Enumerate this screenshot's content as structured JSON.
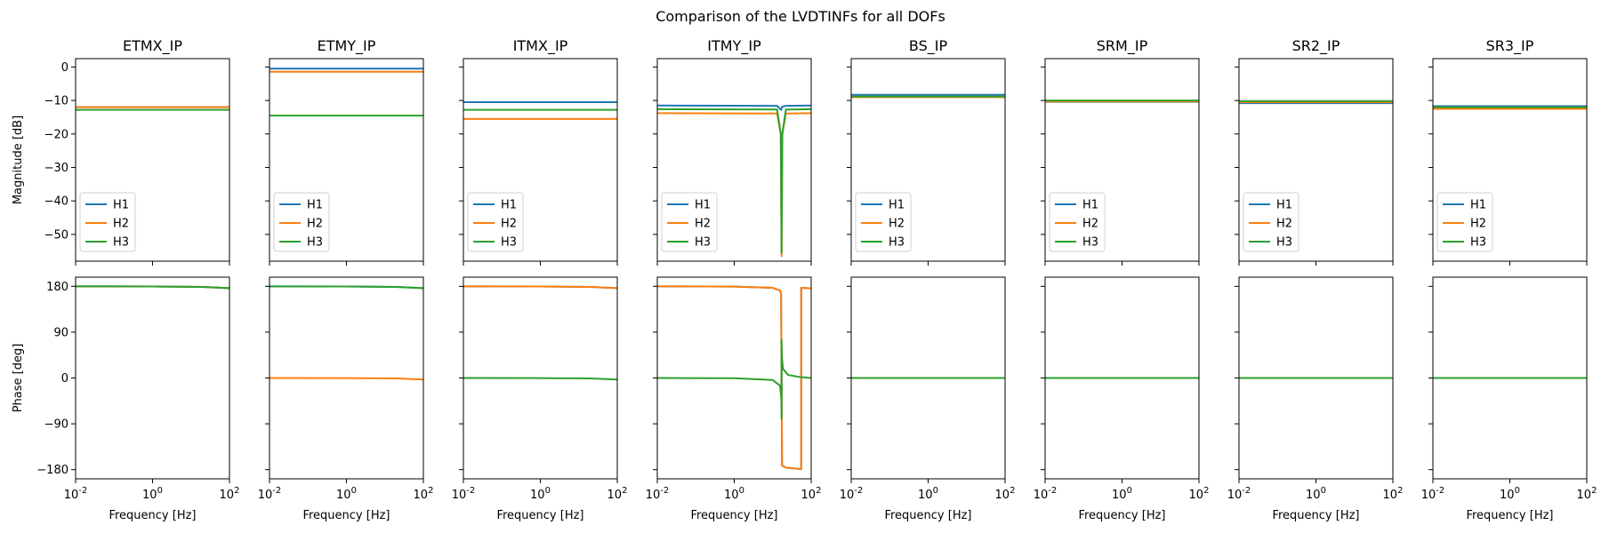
{
  "figure": {
    "title": "Comparison of the LVDTINFs for all DOFs"
  },
  "colors": {
    "H1": "#1f77b4",
    "H2": "#ff7f0e",
    "H3": "#2ca02c"
  },
  "chart_data": {
    "type": "line",
    "x_scale": "log",
    "xlabel": "Frequency [Hz]",
    "xlim": [
      0.01,
      100
    ],
    "x_ticks": [
      0.01,
      1,
      100
    ],
    "x_tick_labels": [
      "10^-2",
      "10^0",
      "10^2"
    ],
    "magnitude": {
      "ylabel": "Magnitude [dB]",
      "ylim": [
        -58,
        2.5
      ],
      "y_ticks": [
        0,
        -10,
        -20,
        -30,
        -40,
        -50
      ],
      "y_tick_labels": [
        "0",
        "−10",
        "−20",
        "−30",
        "−40",
        "−50"
      ]
    },
    "phase": {
      "ylabel": "Phase [deg]",
      "ylim": [
        -198,
        198
      ],
      "y_ticks": [
        180,
        90,
        0,
        -90,
        -180
      ],
      "y_tick_labels": [
        "180",
        "90",
        "0",
        "−90",
        "−180"
      ]
    },
    "legend": [
      "H1",
      "H2",
      "H3"
    ],
    "legend_placement": "lower-left",
    "grid": false,
    "panels": [
      {
        "title": "ETMX_IP",
        "magnitude": [
          {
            "name": "H1",
            "points": [
              [
                0.01,
                -12.0
              ],
              [
                100,
                -12.0
              ]
            ]
          },
          {
            "name": "H2",
            "points": [
              [
                0.01,
                -12.0
              ],
              [
                100,
                -12.0
              ]
            ]
          },
          {
            "name": "H3",
            "points": [
              [
                0.01,
                -12.8
              ],
              [
                100,
                -12.8
              ]
            ]
          }
        ],
        "phase": [
          {
            "name": "H1",
            "points": [
              [
                0.01,
                180
              ],
              [
                1,
                179.7
              ],
              [
                20,
                178.8
              ],
              [
                100,
                176.5
              ]
            ]
          },
          {
            "name": "H2",
            "points": [
              [
                0.01,
                180
              ],
              [
                1,
                179.7
              ],
              [
                20,
                178.8
              ],
              [
                100,
                176.5
              ]
            ]
          },
          {
            "name": "H3",
            "points": [
              [
                0.01,
                180
              ],
              [
                1,
                179.7
              ],
              [
                20,
                178.8
              ],
              [
                100,
                176.5
              ]
            ]
          }
        ]
      },
      {
        "title": "ETMY_IP",
        "magnitude": [
          {
            "name": "H1",
            "points": [
              [
                0.01,
                -0.5
              ],
              [
                100,
                -0.5
              ]
            ]
          },
          {
            "name": "H2",
            "points": [
              [
                0.01,
                -1.4
              ],
              [
                100,
                -1.4
              ]
            ]
          },
          {
            "name": "H3",
            "points": [
              [
                0.01,
                -14.5
              ],
              [
                100,
                -14.5
              ]
            ]
          }
        ],
        "phase": [
          {
            "name": "H1",
            "points": [
              [
                0.01,
                180
              ],
              [
                1,
                179.7
              ],
              [
                20,
                178.8
              ],
              [
                100,
                176.5
              ]
            ]
          },
          {
            "name": "H2",
            "points": [
              [
                0.01,
                0
              ],
              [
                1,
                -0.2
              ],
              [
                20,
                -0.9
              ],
              [
                100,
                -3
              ]
            ]
          },
          {
            "name": "H3",
            "points": [
              [
                0.01,
                180
              ],
              [
                1,
                179.7
              ],
              [
                20,
                178.8
              ],
              [
                100,
                176.5
              ]
            ]
          }
        ]
      },
      {
        "title": "ITMX_IP",
        "magnitude": [
          {
            "name": "H1",
            "points": [
              [
                0.01,
                -10.5
              ],
              [
                100,
                -10.5
              ]
            ]
          },
          {
            "name": "H2",
            "points": [
              [
                0.01,
                -15.5
              ],
              [
                100,
                -15.5
              ]
            ]
          },
          {
            "name": "H3",
            "points": [
              [
                0.01,
                -12.8
              ],
              [
                100,
                -12.8
              ]
            ]
          }
        ],
        "phase": [
          {
            "name": "H1",
            "points": [
              [
                0.01,
                180
              ],
              [
                1,
                179.7
              ],
              [
                20,
                178.8
              ],
              [
                100,
                176.5
              ]
            ]
          },
          {
            "name": "H2",
            "points": [
              [
                0.01,
                180
              ],
              [
                1,
                179.7
              ],
              [
                20,
                178.8
              ],
              [
                100,
                176.5
              ]
            ]
          },
          {
            "name": "H3",
            "points": [
              [
                0.01,
                0
              ],
              [
                1,
                -0.2
              ],
              [
                20,
                -0.9
              ],
              [
                100,
                -3
              ]
            ]
          }
        ]
      },
      {
        "title": "ITMY_IP",
        "magnitude": [
          {
            "name": "H1",
            "points": [
              [
                0.01,
                -11.5
              ],
              [
                13,
                -11.6
              ],
              [
                16.5,
                -12.8
              ],
              [
                17.5,
                -11.9
              ],
              [
                22,
                -11.6
              ],
              [
                100,
                -11.5
              ]
            ]
          },
          {
            "name": "H2",
            "points": [
              [
                0.01,
                -13.8
              ],
              [
                13,
                -13.9
              ],
              [
                16.2,
                -20
              ],
              [
                17,
                -56.5
              ],
              [
                17.8,
                -20
              ],
              [
                22,
                -13.9
              ],
              [
                100,
                -13.8
              ]
            ]
          },
          {
            "name": "H3",
            "points": [
              [
                0.01,
                -12.6
              ],
              [
                13,
                -12.7
              ],
              [
                16.2,
                -20
              ],
              [
                17,
                -55.5
              ],
              [
                17.8,
                -20
              ],
              [
                22,
                -12.7
              ],
              [
                100,
                -12.6
              ]
            ]
          }
        ],
        "phase": [
          {
            "name": "H1",
            "points": [
              [
                0.01,
                180
              ],
              [
                1,
                179.5
              ],
              [
                10,
                177
              ],
              [
                15.5,
                172
              ],
              [
                16.5,
                165
              ],
              [
                17,
                0
              ],
              [
                17.5,
                -172
              ],
              [
                22,
                -176
              ],
              [
                40,
                -178
              ],
              [
                55,
                -179
              ],
              [
                55,
                177
              ],
              [
                100,
                176
              ]
            ]
          },
          {
            "name": "H2",
            "points": [
              [
                0.01,
                180
              ],
              [
                1,
                179.5
              ],
              [
                10,
                177
              ],
              [
                15.5,
                172
              ],
              [
                16.5,
                165
              ],
              [
                17,
                0
              ],
              [
                17.5,
                -172
              ],
              [
                22,
                -176
              ],
              [
                40,
                -178
              ],
              [
                55,
                -179
              ],
              [
                55,
                177
              ],
              [
                100,
                176
              ]
            ]
          },
          {
            "name": "H3",
            "points": [
              [
                0.01,
                0
              ],
              [
                1,
                -0.5
              ],
              [
                10,
                -4
              ],
              [
                15.5,
                -15
              ],
              [
                16.8,
                -40
              ],
              [
                17,
                -80
              ],
              [
                17,
                75
              ],
              [
                17.4,
                40
              ],
              [
                18.5,
                18
              ],
              [
                25,
                6
              ],
              [
                50,
                2
              ],
              [
                100,
                0
              ]
            ]
          }
        ]
      },
      {
        "title": "BS_IP",
        "magnitude": [
          {
            "name": "H1",
            "points": [
              [
                0.01,
                -8.3
              ],
              [
                100,
                -8.3
              ]
            ]
          },
          {
            "name": "H2",
            "points": [
              [
                0.01,
                -9.0
              ],
              [
                100,
                -9.0
              ]
            ]
          },
          {
            "name": "H3",
            "points": [
              [
                0.01,
                -8.8
              ],
              [
                100,
                -8.8
              ]
            ]
          }
        ],
        "phase": [
          {
            "name": "H1",
            "points": [
              [
                0.01,
                0
              ],
              [
                100,
                0
              ]
            ]
          },
          {
            "name": "H2",
            "points": [
              [
                0.01,
                0
              ],
              [
                100,
                0
              ]
            ]
          },
          {
            "name": "H3",
            "points": [
              [
                0.01,
                0
              ],
              [
                100,
                0
              ]
            ]
          }
        ]
      },
      {
        "title": "SRM_IP",
        "magnitude": [
          {
            "name": "H1",
            "points": [
              [
                0.01,
                -10.4
              ],
              [
                100,
                -10.4
              ]
            ]
          },
          {
            "name": "H2",
            "points": [
              [
                0.01,
                -10.3
              ],
              [
                100,
                -10.3
              ]
            ]
          },
          {
            "name": "H3",
            "points": [
              [
                0.01,
                -10.0
              ],
              [
                100,
                -10.0
              ]
            ]
          }
        ],
        "phase": [
          {
            "name": "H1",
            "points": [
              [
                0.01,
                0
              ],
              [
                100,
                0
              ]
            ]
          },
          {
            "name": "H2",
            "points": [
              [
                0.01,
                0
              ],
              [
                100,
                0
              ]
            ]
          },
          {
            "name": "H3",
            "points": [
              [
                0.01,
                0
              ],
              [
                100,
                0
              ]
            ]
          }
        ]
      },
      {
        "title": "SR2_IP",
        "magnitude": [
          {
            "name": "H1",
            "points": [
              [
                0.01,
                -10.8
              ],
              [
                100,
                -10.8
              ]
            ]
          },
          {
            "name": "H2",
            "points": [
              [
                0.01,
                -10.5
              ],
              [
                100,
                -10.5
              ]
            ]
          },
          {
            "name": "H3",
            "points": [
              [
                0.01,
                -10.2
              ],
              [
                100,
                -10.2
              ]
            ]
          }
        ],
        "phase": [
          {
            "name": "H1",
            "points": [
              [
                0.01,
                0
              ],
              [
                100,
                0
              ]
            ]
          },
          {
            "name": "H2",
            "points": [
              [
                0.01,
                0
              ],
              [
                100,
                0
              ]
            ]
          },
          {
            "name": "H3",
            "points": [
              [
                0.01,
                0
              ],
              [
                100,
                0
              ]
            ]
          }
        ]
      },
      {
        "title": "SR3_IP",
        "magnitude": [
          {
            "name": "H1",
            "points": [
              [
                0.01,
                -11.7
              ],
              [
                100,
                -11.7
              ]
            ]
          },
          {
            "name": "H2",
            "points": [
              [
                0.01,
                -12.5
              ],
              [
                100,
                -12.5
              ]
            ]
          },
          {
            "name": "H3",
            "points": [
              [
                0.01,
                -12.0
              ],
              [
                100,
                -12.0
              ]
            ]
          }
        ],
        "phase": [
          {
            "name": "H1",
            "points": [
              [
                0.01,
                0
              ],
              [
                100,
                0
              ]
            ]
          },
          {
            "name": "H2",
            "points": [
              [
                0.01,
                0
              ],
              [
                100,
                0
              ]
            ]
          },
          {
            "name": "H3",
            "points": [
              [
                0.01,
                0
              ],
              [
                100,
                0
              ]
            ]
          }
        ]
      }
    ]
  }
}
